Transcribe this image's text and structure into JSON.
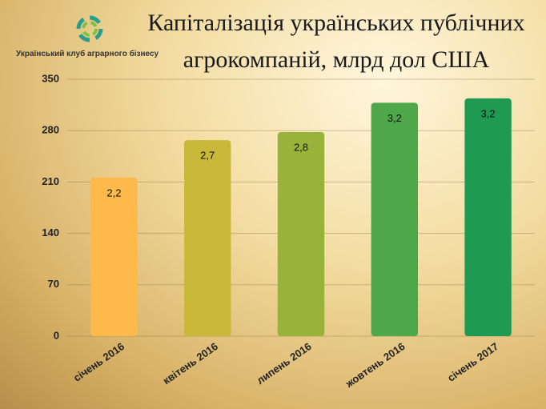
{
  "chart_data": {
    "type": "bar",
    "title": "Капіталізація українських публічних агрокомпаній, млрд дол США",
    "logo_text": "Український клуб аграрного бізнесу",
    "categories": [
      "січень 2016",
      "квітень 2016",
      "липень 2016",
      "жовтень 2016",
      "січень 2017"
    ],
    "values": [
      216,
      267,
      278,
      318,
      324
    ],
    "value_labels": [
      "2,2",
      "2,7",
      "2,8",
      "3,2",
      "3,2"
    ],
    "colors": [
      "#fdb94a",
      "#c9b83a",
      "#97b33a",
      "#4ea84a",
      "#1f9a52"
    ],
    "ylim": [
      0,
      350
    ],
    "yticks": [
      0,
      70,
      140,
      210,
      280,
      350
    ],
    "grid": true
  }
}
